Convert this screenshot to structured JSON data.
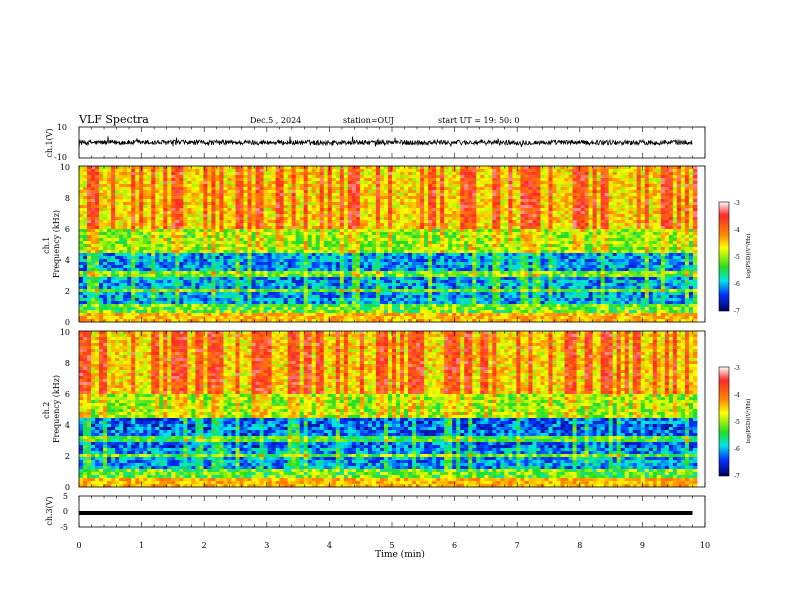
{
  "header": {
    "title": "VLF Spectra",
    "date": "Dec.5 , 2024",
    "station": "station=OUJ",
    "start": "start UT = 19: 50: 0"
  },
  "chart_data": [
    {
      "type": "line",
      "id": "waveform-ch1",
      "ylabel": "ch.1(V)",
      "ylim": [
        -10,
        10
      ],
      "yticks": [
        "10",
        "-10"
      ],
      "x_range": [
        0,
        10
      ],
      "signal_x_end": 9.8,
      "description_level": "noise ~ ±2 V around 0"
    },
    {
      "type": "heatmap",
      "id": "spectrogram-ch1",
      "ylabel": "ch.1\nFrequency (kHz)",
      "ylim": [
        0,
        10
      ],
      "yticks": [
        "0",
        "2",
        "4",
        "6",
        "8",
        "10"
      ],
      "x_range": [
        0,
        10
      ],
      "colorbar": {
        "label": "log(PSD)(V²/Hz)",
        "range": [
          -7,
          -3
        ],
        "ticks": [
          "-3",
          "-4",
          "-5",
          "-6",
          "-7"
        ]
      }
    },
    {
      "type": "heatmap",
      "id": "spectrogram-ch2",
      "ylabel": "ch.2\nFrequency (kHz)",
      "ylim": [
        0,
        10
      ],
      "yticks": [
        "0",
        "2",
        "4",
        "6",
        "8",
        "10"
      ],
      "x_range": [
        0,
        10
      ],
      "colorbar": {
        "label": "log(PSD)(V²/Hz)",
        "range": [
          -7,
          -3
        ],
        "ticks": [
          "-3",
          "-4",
          "-5",
          "-6",
          "-7"
        ]
      }
    },
    {
      "type": "line",
      "id": "waveform-ch3",
      "ylabel": "ch.3(V)",
      "ylim": [
        -5,
        5
      ],
      "yticks": [
        "5",
        "0",
        "-5"
      ],
      "x_range": [
        0,
        10
      ],
      "constant_value": -0.5,
      "signal_x_end": 9.8
    }
  ],
  "xaxis": {
    "label": "Time (min)",
    "ticks": [
      "0",
      "1",
      "2",
      "3",
      "4",
      "5",
      "6",
      "7",
      "8",
      "9",
      "10"
    ]
  }
}
